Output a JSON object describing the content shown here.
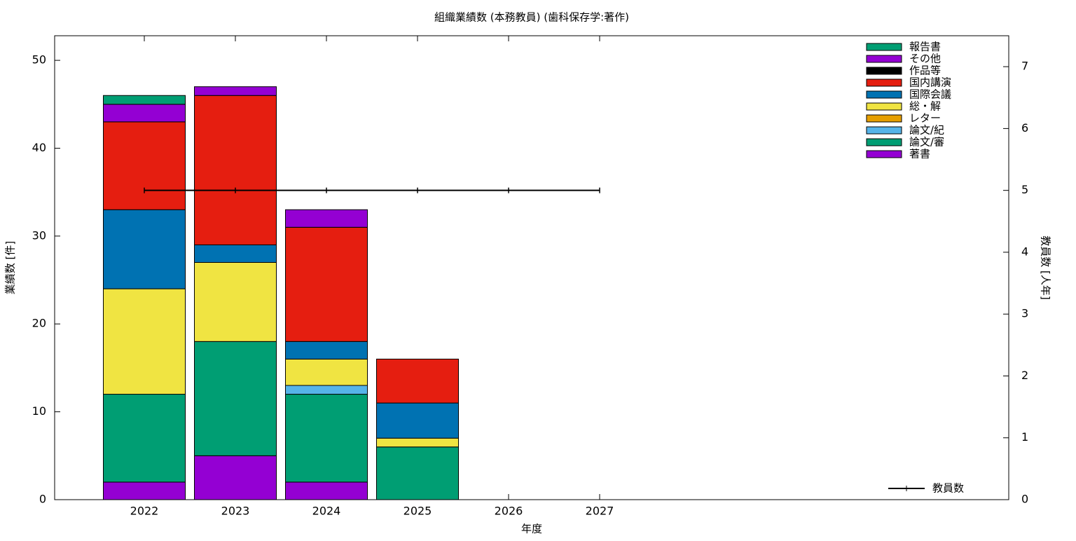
{
  "chart_data": {
    "type": "bar",
    "stacked": true,
    "title": "組織業績数 (本務教員) (歯科保存学:著作)",
    "xlabel": "年度",
    "ylabel": "業績数 [件]",
    "y2label": "教員数 [人年]",
    "categories": [
      "2022",
      "2023",
      "2024",
      "2025",
      "2026",
      "2027"
    ],
    "ylim": [
      0,
      52.8
    ],
    "yticks": [
      0,
      10,
      20,
      30,
      40,
      50
    ],
    "y2lim": [
      0,
      7.5
    ],
    "y2ticks": [
      0,
      1,
      2,
      3,
      4,
      5,
      6,
      7
    ],
    "legend": "upper right",
    "series": [
      {
        "name": "著書",
        "color": "#9400d3",
        "values": [
          2,
          5,
          2,
          0,
          null,
          null
        ]
      },
      {
        "name": "論文/審",
        "color": "#009e73",
        "values": [
          10,
          13,
          10,
          6,
          null,
          null
        ]
      },
      {
        "name": "論文/紀",
        "color": "#56b4e9",
        "values": [
          0,
          0,
          1,
          0,
          null,
          null
        ]
      },
      {
        "name": "レター",
        "color": "#e69f00",
        "values": [
          0,
          0,
          0,
          0,
          null,
          null
        ]
      },
      {
        "name": "総・解",
        "color": "#f0e442",
        "values": [
          12,
          9,
          3,
          1,
          null,
          null
        ]
      },
      {
        "name": "国際会議",
        "color": "#0072b2",
        "values": [
          9,
          2,
          2,
          4,
          null,
          null
        ]
      },
      {
        "name": "国内講演",
        "color": "#e51e10",
        "values": [
          10,
          17,
          13,
          5,
          null,
          null
        ]
      },
      {
        "name": "作品等",
        "color": "#000000",
        "values": [
          0,
          0,
          0,
          0,
          null,
          null
        ]
      },
      {
        "name": "その他",
        "color": "#9400d3",
        "values": [
          2,
          1,
          2,
          0,
          null,
          null
        ]
      },
      {
        "name": "報告書",
        "color": "#009e73",
        "values": [
          1,
          0,
          0,
          0,
          null,
          null
        ]
      },
      {
        "name": "教員数",
        "color": "#000000",
        "type": "line",
        "axis": "y2",
        "values": [
          5,
          5,
          5,
          5,
          5,
          5
        ]
      }
    ]
  }
}
